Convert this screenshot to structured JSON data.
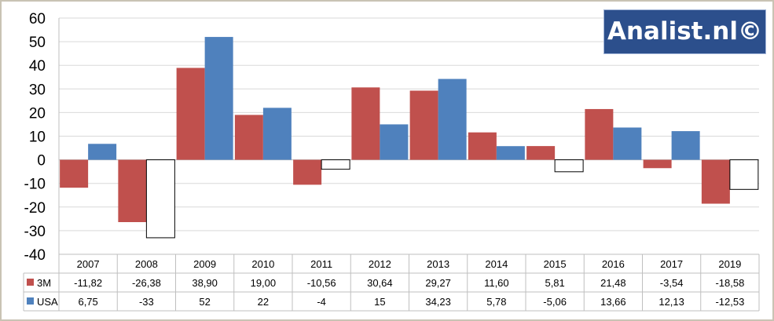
{
  "brand": {
    "label": "Analist.nl©"
  },
  "colors": {
    "3M": "#c0504d",
    "USA": "#4f81bd",
    "negative_usa_fill": "#ffffff",
    "grid": "#d9d9d9"
  },
  "chart_data": {
    "type": "bar",
    "categories": [
      "2007",
      "2008",
      "2009",
      "2010",
      "2011",
      "2012",
      "2013",
      "2014",
      "2015",
      "2016",
      "2017",
      "2019"
    ],
    "series": [
      {
        "name": "3M",
        "values": [
          -11.82,
          -26.38,
          38.9,
          19.0,
          -10.56,
          30.64,
          29.27,
          11.6,
          5.81,
          21.48,
          -3.54,
          -18.58
        ],
        "labels": [
          "-11,82",
          "-26,38",
          "38,90",
          "19,00",
          "-10,56",
          "30,64",
          "29,27",
          "11,60",
          "5,81",
          "21,48",
          "-3,54",
          "-18,58"
        ]
      },
      {
        "name": "USA",
        "values": [
          6.75,
          -33,
          52,
          22,
          -4,
          15,
          34.23,
          5.78,
          -5.06,
          13.66,
          12.13,
          -12.53
        ],
        "labels": [
          "6,75",
          "-33",
          "52",
          "22",
          "-4",
          "15",
          "34,23",
          "5,78",
          "-5,06",
          "13,66",
          "12,13",
          "-12,53"
        ]
      }
    ],
    "ylim": [
      -40,
      60
    ],
    "yticks": [
      60,
      50,
      40,
      30,
      20,
      10,
      0,
      -10,
      -20,
      -30,
      -40
    ],
    "grid": true,
    "legend": "data table below chart"
  }
}
